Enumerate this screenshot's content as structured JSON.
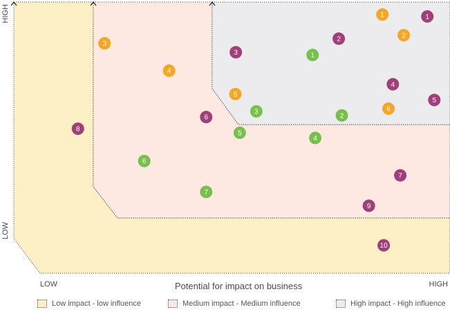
{
  "chart_data": {
    "type": "scatter",
    "title": "",
    "xlabel": "Potential for impact on business",
    "ylabel": "",
    "x_tick_labels": {
      "low": "LOW",
      "high": "HIGH"
    },
    "y_tick_labels": {
      "low": "LOW",
      "high": "HIGH"
    },
    "xlim": [
      0,
      100
    ],
    "ylim": [
      0,
      100
    ],
    "grid": false,
    "legend_position": "bottom",
    "colors": {
      "zone_low": "#fdefc6",
      "zone_medium": "#fde8e2",
      "zone_high": "#ececef",
      "orange": "#f5a623",
      "green": "#77c04b",
      "purple": "#a03f78"
    },
    "legend": [
      {
        "label": "Low impact - low influence",
        "color": "#fdefc6"
      },
      {
        "label": "Medium impact - Medium influence",
        "color": "#fde8e2"
      },
      {
        "label": "High impact - High influence",
        "color": "#ececef"
      }
    ],
    "series": [
      {
        "color": "#f5a623",
        "points": [
          {
            "label": "1",
            "x": 84.5,
            "y": 95.4
          },
          {
            "label": "2",
            "x": 89.4,
            "y": 87.8
          },
          {
            "label": "3",
            "x": 20.8,
            "y": 84.8
          },
          {
            "label": "4",
            "x": 35.6,
            "y": 74.7
          },
          {
            "label": "5",
            "x": 50.8,
            "y": 66.1
          },
          {
            "label": "6",
            "x": 85.9,
            "y": 60.7
          }
        ]
      },
      {
        "color": "#77c04b",
        "points": [
          {
            "label": "1",
            "x": 68.5,
            "y": 80.5
          },
          {
            "label": "2",
            "x": 75.2,
            "y": 58.2
          },
          {
            "label": "3",
            "x": 55.6,
            "y": 59.7
          },
          {
            "label": "4",
            "x": 69.1,
            "y": 49.9
          },
          {
            "label": "5",
            "x": 51.8,
            "y": 51.8
          },
          {
            "label": "6",
            "x": 29.9,
            "y": 41.4
          },
          {
            "label": "7",
            "x": 44.1,
            "y": 30.0
          }
        ]
      },
      {
        "color": "#a03f78",
        "points": [
          {
            "label": "1",
            "x": 94.8,
            "y": 94.7
          },
          {
            "label": "2",
            "x": 74.5,
            "y": 86.5
          },
          {
            "label": "3",
            "x": 50.9,
            "y": 81.5
          },
          {
            "label": "4",
            "x": 86.9,
            "y": 69.7
          },
          {
            "label": "5",
            "x": 96.4,
            "y": 63.9
          },
          {
            "label": "6",
            "x": 44.1,
            "y": 57.6
          },
          {
            "label": "7",
            "x": 88.6,
            "y": 36.1
          },
          {
            "label": "8",
            "x": 14.7,
            "y": 53.3
          },
          {
            "label": "9",
            "x": 81.4,
            "y": 24.9
          },
          {
            "label": "10",
            "x": 84.8,
            "y": 10.3
          }
        ]
      }
    ]
  }
}
